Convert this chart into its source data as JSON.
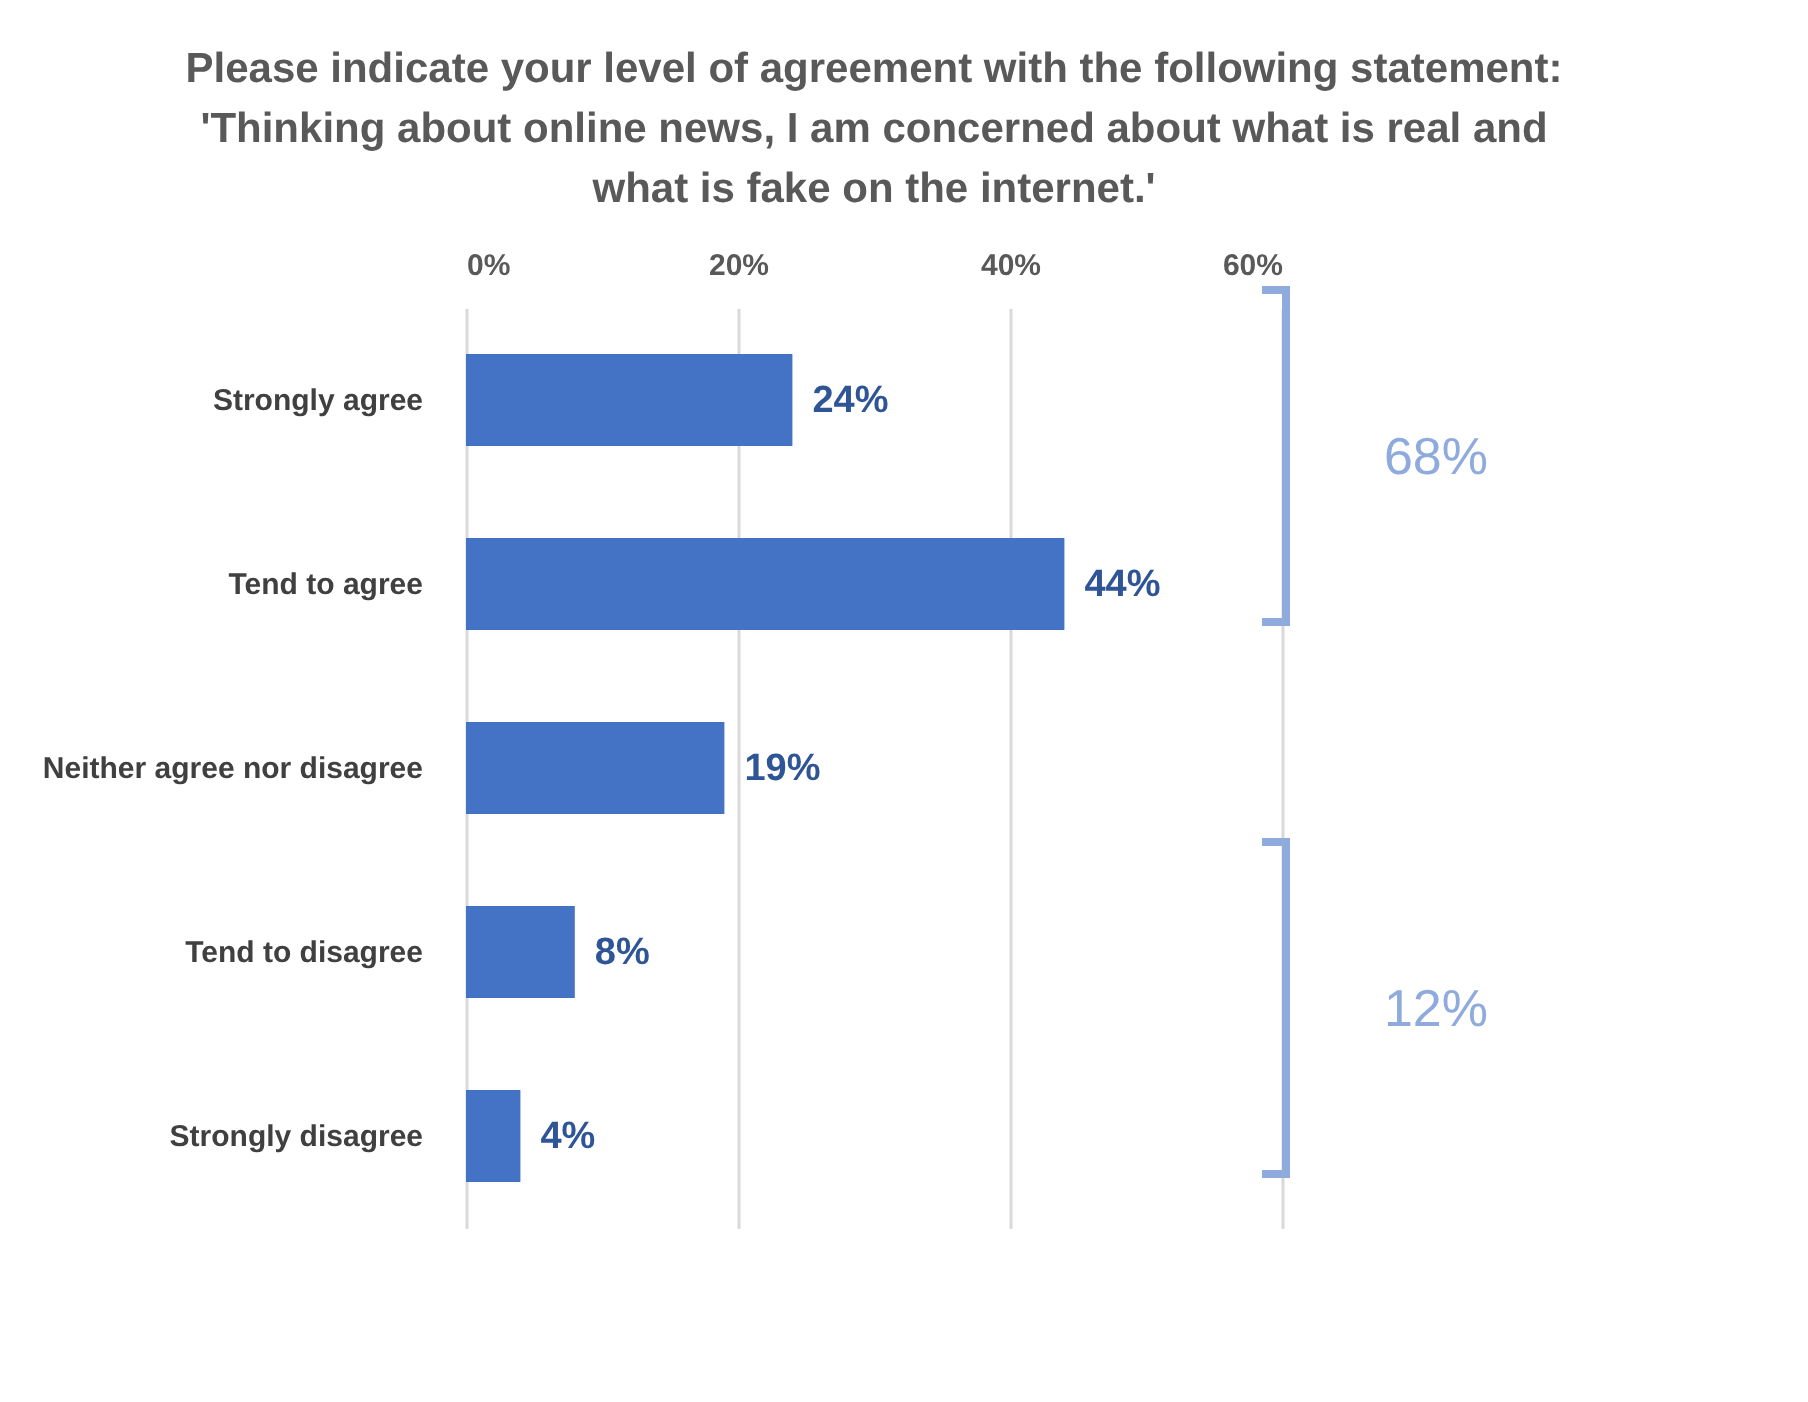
{
  "chart_data": {
    "type": "bar",
    "orientation": "horizontal",
    "title": "Please indicate your level of agreement with the following statement: 'Thinking about online news, I am concerned about what is real and what is fake on the internet.'",
    "categories": [
      "Strongly agree",
      "Tend to agree",
      "Neither agree nor disagree",
      "Tend to disagree",
      "Strongly disagree"
    ],
    "values": [
      24,
      44,
      19,
      8,
      4
    ],
    "value_labels": [
      "24%",
      "44%",
      "19%",
      "8%",
      "4%"
    ],
    "color": "#4472c4",
    "xlim": [
      0,
      60
    ],
    "xticks": [
      {
        "value": 0,
        "label": "0%"
      },
      {
        "value": 20,
        "label": "20%"
      },
      {
        "value": 40,
        "label": "40%"
      },
      {
        "value": 60,
        "label": "60%"
      }
    ],
    "grid": "x",
    "annotations": [
      "68%",
      "12%"
    ]
  }
}
